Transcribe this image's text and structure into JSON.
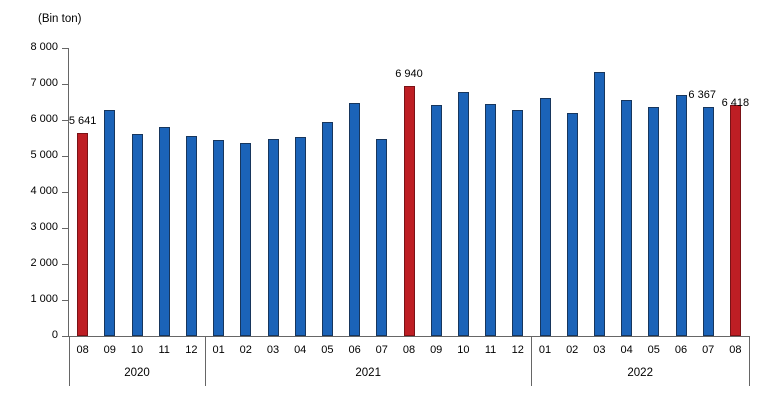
{
  "chart_data": {
    "type": "bar",
    "title": "(Bin ton)",
    "ylabel": "(Bin ton)",
    "xlabel": "",
    "ylim": [
      0,
      8000
    ],
    "ytick_interval": 1000,
    "ytick_labels": [
      "0",
      "1 000",
      "2 000",
      "3 000",
      "4 000",
      "5 000",
      "6 000",
      "7 000",
      "8 000"
    ],
    "grid": false,
    "legend": false,
    "colors": {
      "bar_fill": "#1B63B8",
      "bar_border": "#17365D",
      "highlight_fill": "#BE1E24",
      "highlight_border": "#7A1216",
      "axis": "#666666",
      "text": "#000000"
    },
    "bars": [
      {
        "year": "2020",
        "month": "08",
        "value": 5641,
        "highlight": true,
        "label": "5 641"
      },
      {
        "year": "2020",
        "month": "09",
        "value": 6280,
        "highlight": false,
        "label": ""
      },
      {
        "year": "2020",
        "month": "10",
        "value": 5600,
        "highlight": false,
        "label": ""
      },
      {
        "year": "2020",
        "month": "11",
        "value": 5800,
        "highlight": false,
        "label": ""
      },
      {
        "year": "2020",
        "month": "12",
        "value": 5560,
        "highlight": false,
        "label": ""
      },
      {
        "year": "2021",
        "month": "01",
        "value": 5450,
        "highlight": false,
        "label": ""
      },
      {
        "year": "2021",
        "month": "02",
        "value": 5350,
        "highlight": false,
        "label": ""
      },
      {
        "year": "2021",
        "month": "03",
        "value": 5480,
        "highlight": false,
        "label": ""
      },
      {
        "year": "2021",
        "month": "04",
        "value": 5540,
        "highlight": false,
        "label": ""
      },
      {
        "year": "2021",
        "month": "05",
        "value": 5940,
        "highlight": false,
        "label": ""
      },
      {
        "year": "2021",
        "month": "06",
        "value": 6470,
        "highlight": false,
        "label": ""
      },
      {
        "year": "2021",
        "month": "07",
        "value": 5460,
        "highlight": false,
        "label": ""
      },
      {
        "year": "2021",
        "month": "08",
        "value": 6940,
        "highlight": true,
        "label": "6 940"
      },
      {
        "year": "2021",
        "month": "09",
        "value": 6410,
        "highlight": false,
        "label": ""
      },
      {
        "year": "2021",
        "month": "10",
        "value": 6770,
        "highlight": false,
        "label": ""
      },
      {
        "year": "2021",
        "month": "11",
        "value": 6450,
        "highlight": false,
        "label": ""
      },
      {
        "year": "2021",
        "month": "12",
        "value": 6280,
        "highlight": false,
        "label": ""
      },
      {
        "year": "2022",
        "month": "01",
        "value": 6620,
        "highlight": false,
        "label": ""
      },
      {
        "year": "2022",
        "month": "02",
        "value": 6190,
        "highlight": false,
        "label": ""
      },
      {
        "year": "2022",
        "month": "03",
        "value": 7330,
        "highlight": false,
        "label": ""
      },
      {
        "year": "2022",
        "month": "04",
        "value": 6560,
        "highlight": false,
        "label": ""
      },
      {
        "year": "2022",
        "month": "05",
        "value": 6350,
        "highlight": false,
        "label": ""
      },
      {
        "year": "2022",
        "month": "06",
        "value": 6700,
        "highlight": false,
        "label": ""
      },
      {
        "year": "2022",
        "month": "07",
        "value": 6367,
        "highlight": false,
        "label": "6 367",
        "label_dx": -6
      },
      {
        "year": "2022",
        "month": "08",
        "value": 6418,
        "highlight": true,
        "label": "6 418",
        "label_dy": 10
      }
    ]
  }
}
